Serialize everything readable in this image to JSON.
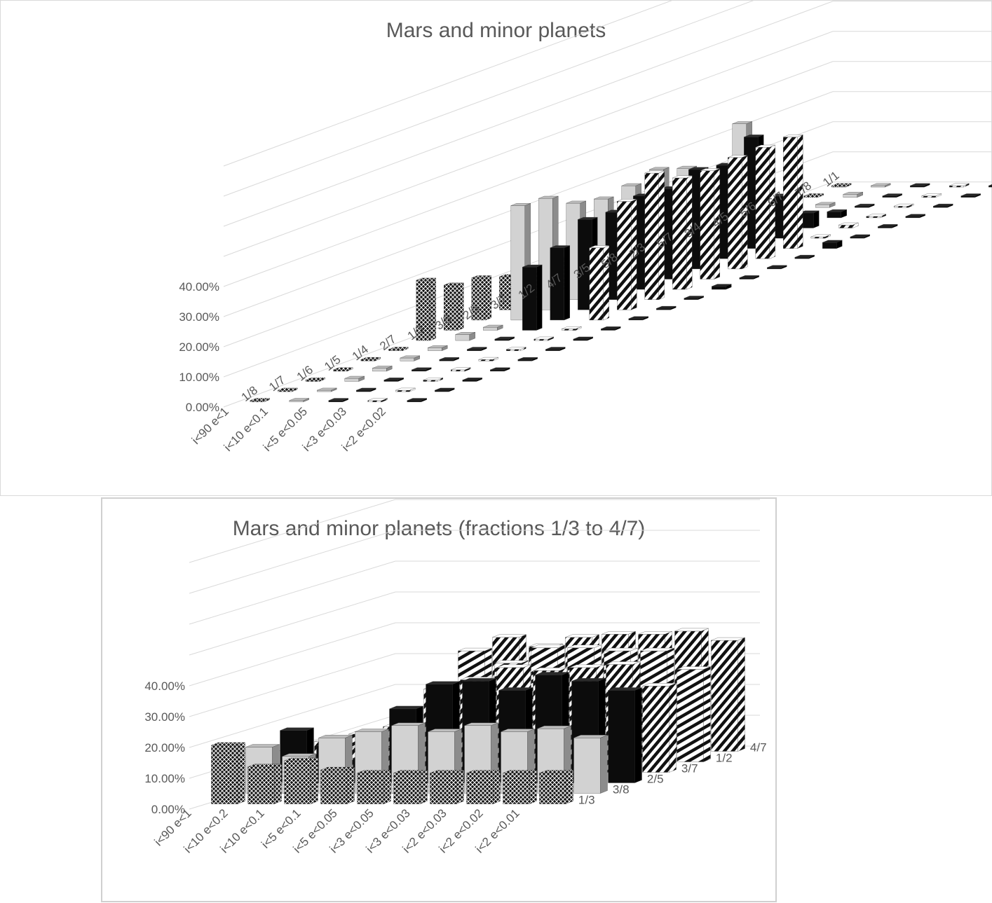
{
  "chart_data": [
    {
      "type": "bar",
      "subtype": "3d-column",
      "title": "Mars and minor planets",
      "ytick_labels": [
        "0.00%",
        "10.00%",
        "20.00%",
        "30.00%",
        "40.00%"
      ],
      "ylim": [
        0,
        80
      ],
      "grid": true,
      "legend": "none",
      "series": [
        {
          "name": "i<90 e<1",
          "pattern": "crosshatch"
        },
        {
          "name": "i<10 e<0.1",
          "pattern": "gray"
        },
        {
          "name": "i<5 e<0.05",
          "pattern": "black"
        },
        {
          "name": "i<3 e<0.03",
          "pattern": "diagonal"
        },
        {
          "name": "i<2 e<0.02",
          "pattern": "black-dashed"
        }
      ],
      "row_labels": [
        "i<90 e<1",
        "i<10 e<0.1",
        "i<5 e<0.05",
        "i<3 e<0.03",
        "i<2 e<0.02"
      ],
      "categories": [
        "1/8",
        "1/7",
        "1/6",
        "1/5",
        "1/4",
        "2/7",
        "1/3",
        "3/8",
        "2/5",
        "3/7",
        "1/2",
        "4/7",
        "3/5",
        "5/8",
        "2/3",
        "5/7",
        "3/4",
        "4/5",
        "5/6",
        "6/7",
        "7/8",
        "1/1"
      ],
      "values": [
        [
          0,
          0,
          0,
          0,
          0,
          0,
          20,
          15,
          14,
          11,
          9,
          10,
          9,
          9,
          10,
          9,
          8,
          7,
          0,
          0,
          0,
          0
        ],
        [
          0,
          0,
          1,
          1,
          1,
          1,
          2,
          1,
          38,
          37,
          32,
          30,
          31,
          33,
          30,
          2,
          38,
          1,
          1,
          1,
          1,
          0
        ],
        [
          0,
          0,
          0,
          0,
          0,
          0,
          0,
          21,
          24,
          30,
          29,
          31,
          30,
          33,
          31,
          37,
          14,
          5,
          2,
          0,
          0,
          0
        ],
        [
          0,
          0,
          0,
          0,
          0,
          0,
          0,
          0,
          24,
          36,
          42,
          37,
          36,
          37,
          37,
          37,
          0,
          1,
          0,
          0,
          0,
          0
        ],
        [
          0,
          0,
          0,
          0,
          0,
          0,
          0,
          0,
          0,
          0,
          0,
          1,
          0,
          0,
          0,
          2,
          0,
          0,
          0,
          0,
          0,
          0
        ]
      ]
    },
    {
      "type": "bar",
      "subtype": "3d-column",
      "title": "Mars and minor planets (fractions 1/3 to 4/7)",
      "ytick_labels": [
        "0.00%",
        "10.00%",
        "20.00%",
        "30.00%",
        "40.00%"
      ],
      "ylim": [
        0,
        80
      ],
      "grid": true,
      "legend": "none",
      "series": [
        {
          "name": "i<90 e<1",
          "pattern": "crosshatch"
        },
        {
          "name": "i<10 e<0.2",
          "pattern": "crosshatch"
        },
        {
          "name": "i<10 e<0.1",
          "pattern": "crosshatch"
        },
        {
          "name": "i<5 e<0.1",
          "pattern": "crosshatch"
        },
        {
          "name": "i<5 e<0.05",
          "pattern": "crosshatch"
        },
        {
          "name": "i<3 e<0.05",
          "pattern": "crosshatch"
        },
        {
          "name": "i<3 e<0.03",
          "pattern": "crosshatch"
        },
        {
          "name": "i<2 e<0.03",
          "pattern": "crosshatch"
        },
        {
          "name": "i<2 e<0.02",
          "pattern": "crosshatch"
        },
        {
          "name": "i<2 e<0.01",
          "pattern": "crosshatch"
        }
      ],
      "row_labels": [
        "i<90 e<1",
        "i<10 e<0.2",
        "i<10 e<0.1",
        "i<5 e<0.1",
        "i<5 e<0.05",
        "i<3 e<0.05",
        "i<3 e<0.03",
        "i<2 e<0.03",
        "i<2 e<0.02",
        "i<2 e<0.01"
      ],
      "categories": [
        "1/3",
        "3/8",
        "2/5",
        "3/7",
        "1/2",
        "4/7"
      ],
      "values": [
        [
          19,
          15,
          17,
          10,
          9,
          8
        ],
        [
          12,
          12,
          12,
          8,
          8,
          7
        ],
        [
          14,
          18,
          8,
          8,
          8,
          8
        ],
        [
          11,
          20,
          24,
          27,
          36,
          37
        ],
        [
          10,
          22,
          32,
          30,
          32,
          34
        ],
        [
          10,
          20,
          33,
          34,
          37,
          37
        ],
        [
          10,
          22,
          30,
          33,
          37,
          38
        ],
        [
          10,
          20,
          35,
          34,
          36,
          38
        ],
        [
          10,
          21,
          33,
          35,
          36,
          39
        ],
        [
          10,
          18,
          30,
          28,
          30,
          36
        ]
      ]
    }
  ]
}
